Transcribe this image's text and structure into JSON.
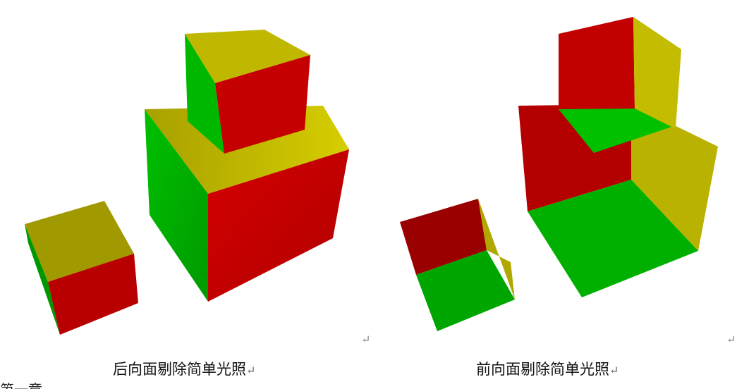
{
  "figures": [
    {
      "caption": "后向面剔除简单光照",
      "caption_mark": "↵",
      "trailing_mark": "↵"
    },
    {
      "caption": "前向面剔除简单光照",
      "caption_mark": "↵",
      "trailing_mark": "↵"
    }
  ],
  "colors": {
    "red": "#c00000",
    "green": "#00b400",
    "yellow": "#c8c000"
  },
  "footer_fragment": "第一章"
}
